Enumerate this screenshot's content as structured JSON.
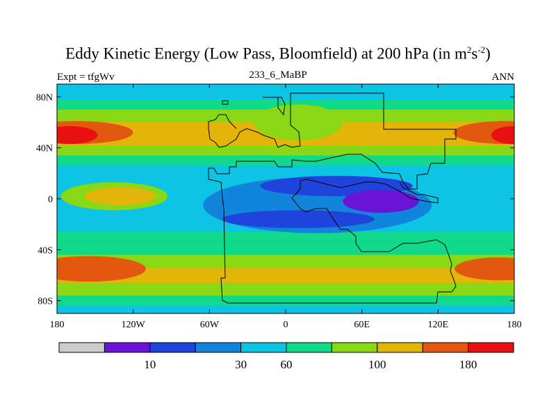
{
  "chart_data": {
    "type": "heatmap",
    "title_main": "Eddy Kinetic Energy (Low Pass, Bloomfield) at 200 hPa (in m",
    "title_unit_m_exp": "2",
    "title_unit_s": "s",
    "title_unit_s_exp": "-2",
    "title_close": ")",
    "left_label": "Expt = tfgWv",
    "center_label": "233_6_MaBP",
    "right_label": "ANN",
    "x_ticks": [
      {
        "lon": -180,
        "label": "180"
      },
      {
        "lon": -120,
        "label": "120W"
      },
      {
        "lon": -60,
        "label": "60W"
      },
      {
        "lon": 0,
        "label": "0"
      },
      {
        "lon": 60,
        "label": "60E"
      },
      {
        "lon": 120,
        "label": "120E"
      },
      {
        "lon": 180,
        "label": "180"
      }
    ],
    "y_ticks": [
      {
        "lat": 80,
        "label": "80N"
      },
      {
        "lat": 40,
        "label": "40N"
      },
      {
        "lat": 0,
        "label": "0"
      },
      {
        "lat": -40,
        "label": "40S"
      },
      {
        "lat": -80,
        "label": "80S"
      }
    ],
    "lon_range": [
      -180,
      180
    ],
    "lat_range": [
      -90,
      90
    ],
    "colorbar": {
      "colors": [
        "#cccccc",
        "#6a14d8",
        "#1f44dc",
        "#1184dc",
        "#0ec4e4",
        "#10d98a",
        "#88d816",
        "#e2b508",
        "#e2580e",
        "#e81010"
      ],
      "labels": [
        {
          "boundary": 2,
          "text": "10"
        },
        {
          "boundary": 4,
          "text": "30"
        },
        {
          "boundary": 5,
          "text": "60"
        },
        {
          "boundary": 7,
          "text": "100"
        },
        {
          "boundary": 9,
          "text": "180"
        }
      ]
    },
    "zonal_profile": [
      {
        "lat": 90,
        "level": 4
      },
      {
        "lat": 84,
        "level": 4
      },
      {
        "lat": 78,
        "level": 5
      },
      {
        "lat": 70,
        "level": 6
      },
      {
        "lat": 60,
        "level": 7
      },
      {
        "lat": 50,
        "level": 7
      },
      {
        "lat": 42,
        "level": 6
      },
      {
        "lat": 34,
        "level": 5
      },
      {
        "lat": 26,
        "level": 4
      },
      {
        "lat": 18,
        "level": 4
      },
      {
        "lat": 10,
        "level": 4
      },
      {
        "lat": 0,
        "level": 4
      },
      {
        "lat": -10,
        "level": 4
      },
      {
        "lat": -18,
        "level": 4
      },
      {
        "lat": -26,
        "level": 5
      },
      {
        "lat": -34,
        "level": 5
      },
      {
        "lat": -44,
        "level": 6
      },
      {
        "lat": -54,
        "level": 7
      },
      {
        "lat": -66,
        "level": 6
      },
      {
        "lat": -76,
        "level": 5
      },
      {
        "lat": -84,
        "level": 4
      },
      {
        "lat": -90,
        "level": 4
      }
    ],
    "features": [
      {
        "lon": -165,
        "lat": 52,
        "rlon": 45,
        "rlat": 9,
        "level": 8
      },
      {
        "lon": -170,
        "lat": 50,
        "rlon": 22,
        "rlat": 7,
        "level": 9
      },
      {
        "lon": 172,
        "lat": 52,
        "rlon": 40,
        "rlat": 9,
        "level": 8
      },
      {
        "lon": 178,
        "lat": 50,
        "rlon": 16,
        "rlat": 7,
        "level": 9
      },
      {
        "lon": -155,
        "lat": -55,
        "rlon": 45,
        "rlat": 10,
        "level": 8
      },
      {
        "lon": 168,
        "lat": -55,
        "rlon": 35,
        "rlat": 9,
        "level": 8
      },
      {
        "lon": -135,
        "lat": 2,
        "rlon": 42,
        "rlat": 11,
        "level": 6
      },
      {
        "lon": -130,
        "lat": 2,
        "rlon": 28,
        "rlat": 7,
        "level": 7
      },
      {
        "lon": 10,
        "lat": 60,
        "rlon": 35,
        "rlat": 14,
        "level": 6
      },
      {
        "lon": 25,
        "lat": -5,
        "rlon": 90,
        "rlat": 22,
        "level": 3
      },
      {
        "lon": 40,
        "lat": 10,
        "rlon": 60,
        "rlat": 8,
        "level": 2
      },
      {
        "lon": 10,
        "lat": -16,
        "rlon": 60,
        "rlat": 7,
        "level": 2
      },
      {
        "lon": 75,
        "lat": -2,
        "rlon": 30,
        "rlat": 9,
        "level": 1
      }
    ]
  }
}
